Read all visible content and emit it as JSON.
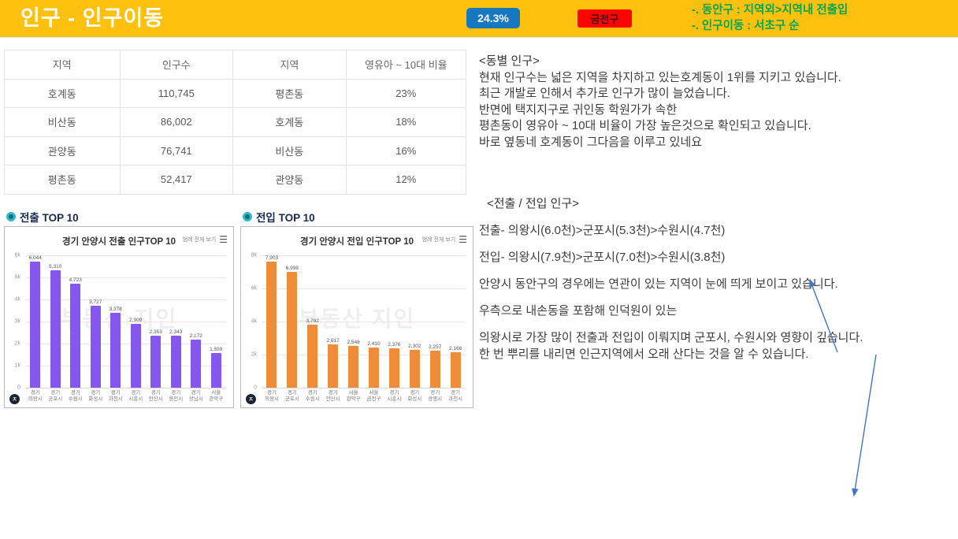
{
  "header": {
    "title": "인구 - 인구이동",
    "percent_badge": "24.3%",
    "region_badge": "금천구",
    "notes": [
      "-. 동안구 : 지역외>지역내 전출입",
      "-. 인구이동 : 서초구 순"
    ],
    "colors": {
      "bar_bg": "#FFC10D",
      "badge_blue": "#1778C2",
      "badge_red": "#FB0404",
      "note_green": "#00A651"
    }
  },
  "table": {
    "headers": [
      "지역",
      "인구수",
      "지역",
      "영유아 ~ 10대 비율"
    ],
    "rows": [
      [
        "호계동",
        "110,745",
        "평촌동",
        "23%"
      ],
      [
        "비산동",
        "86,002",
        "호계동",
        "18%"
      ],
      [
        "관양동",
        "76,741",
        "비산동",
        "16%"
      ],
      [
        "평촌동",
        "52,417",
        "관양동",
        "12%"
      ]
    ]
  },
  "sections": {
    "out_label": "전출 TOP 10",
    "in_label": "전입 TOP 10"
  },
  "chart_data": [
    {
      "type": "bar",
      "title": "경기 안양시 전출 인구TOP 10",
      "legend_link": "범례 전체 보기",
      "watermark": "부동산 지인",
      "categories": [
        "경기 의왕시",
        "경기 군포시",
        "경기 수원시",
        "경기 화성시",
        "경기 과천시",
        "경기 시흥시",
        "경기 안산시",
        "경기 용인시",
        "경기 성남시",
        "서울 관악구"
      ],
      "values": [
        6044,
        5310,
        4723,
        3727,
        3378,
        2909,
        2353,
        2343,
        2172,
        1559
      ],
      "ylim": [
        0,
        6000
      ],
      "yticks": [
        "6k",
        "5k",
        "4k",
        "3k",
        "2k",
        "1k",
        "0"
      ],
      "bar_color": "#8657EE",
      "legend_position": "top-right",
      "grid": true
    },
    {
      "type": "bar",
      "title": "경기 안양시 전입 인구TOP 10",
      "legend_link": "범례 전체 보기",
      "watermark": "부동산 지인",
      "categories": [
        "경기 의왕시",
        "경기 군포시",
        "경기 수원시",
        "경기 안산시",
        "서울 관악구",
        "서울 금천구",
        "경기 시흥시",
        "경기 화성시",
        "경기 광명시",
        "경기 과천시"
      ],
      "values": [
        7903,
        6998,
        3792,
        2617,
        2548,
        2410,
        2376,
        2302,
        2257,
        2166
      ],
      "ylim": [
        0,
        8000
      ],
      "yticks": [
        "8k",
        "6k",
        "4k",
        "2k",
        "0"
      ],
      "bar_color": "#EF8C3A",
      "legend_position": "top-right",
      "grid": true
    }
  ],
  "commentary_dong": {
    "heading": "<동별 인구>",
    "lines": [
      "현재 인구수는 넓은 지역을 차지하고 있는호계동이 1위를 지키고 있습니다.",
      "최근 개발로 인해서 추가로 인구가 많이 늘었습니다.",
      "반면에 택지지구로 귀인동 학원가가 속한",
      "평촌동이 영유아 ~ 10대 비율이 가장 높은것으로 확인되고 있습니다.",
      "바로 옆동네 호계동이 그다음을 이루고 있네요"
    ]
  },
  "commentary_move": {
    "heading": "<전출 / 전입 인구>",
    "paragraphs": [
      "전출-  의왕시(6.0천)>군포시(5.3천)>수원시(4.7천)",
      "전입- 의왕시(7.9천)>군포시(7.0천)>수원시(3.8천)",
      "안양시 동안구의 경우에는 연관이 있는 지역이 눈에 띄게 보이고 있습니다.",
      "우측으로 내손동을 포함해 인덕원이 있는",
      "의왕시로 가장 많이 전출과 전입이 이뤄지며 군포시, 수원시와 영향이 깊습니다.\n한 번 뿌리를 내리면 인근지역에서 오래 산다는 것을 알 수 있습니다."
    ]
  }
}
